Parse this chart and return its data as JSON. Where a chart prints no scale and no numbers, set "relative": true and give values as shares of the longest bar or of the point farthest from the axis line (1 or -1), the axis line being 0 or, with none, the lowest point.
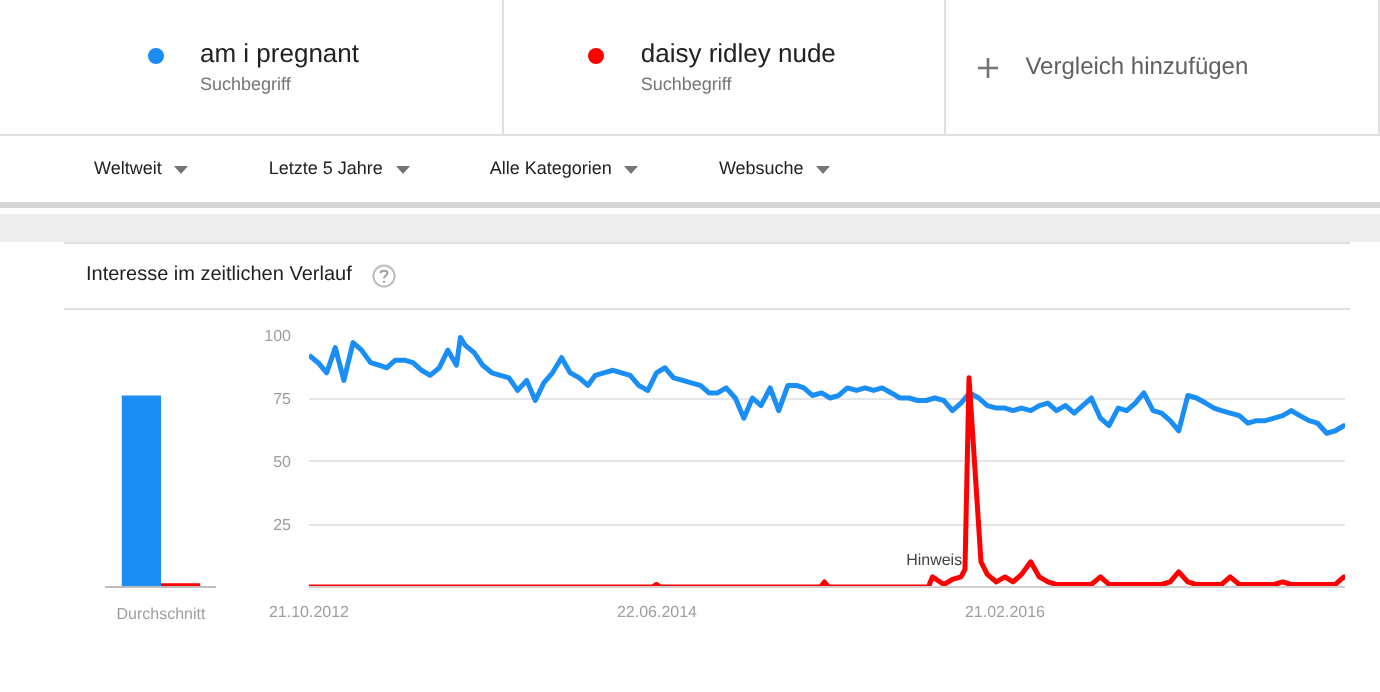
{
  "chart_data": [
    {
      "type": "line",
      "title": "Interesse im zeitlichen Verlauf",
      "legend": "top",
      "grid": "y",
      "marker": "none",
      "line_style": "solid",
      "xlim": [
        "2012-10-21",
        "2017-10-08"
      ],
      "xticks": [
        {
          "value": "2012-10-21",
          "label": "21.10.2012"
        },
        {
          "value": "2014-06-22",
          "label": "22.06.2014"
        },
        {
          "value": "2016-02-21",
          "label": "21.02.2016"
        }
      ],
      "ylim": [
        0,
        100
      ],
      "yticks": [
        25,
        50,
        75,
        100
      ],
      "annotations": [
        "Suchbegriff",
        "Suchbegriff",
        "Vergleich hinzufügen",
        "Weltweit",
        "Letzte 5 Jahre",
        "Alle Kategorien",
        "Websuche",
        {
          "text": "Hinweis",
          "x": "2015-10-20",
          "y": 7
        }
      ],
      "series": [
        {
          "name": "am i pregnant",
          "color": "#1a8ef5",
          "x": [
            "2012-10-21",
            "2012-11-06",
            "2012-11-21",
            "2012-12-06",
            "2012-12-21",
            "2013-01-06",
            "2013-01-21",
            "2013-02-06",
            "2013-02-21",
            "2013-03-06",
            "2013-03-21",
            "2013-04-06",
            "2013-04-21",
            "2013-05-06",
            "2013-05-21",
            "2013-06-06",
            "2013-06-21",
            "2013-07-06",
            "2013-07-13",
            "2013-07-21",
            "2013-08-06",
            "2013-08-21",
            "2013-09-06",
            "2013-09-21",
            "2013-10-06",
            "2013-10-21",
            "2013-11-06",
            "2013-11-21",
            "2013-12-06",
            "2013-12-21",
            "2014-01-06",
            "2014-01-21",
            "2014-02-06",
            "2014-02-21",
            "2014-03-06",
            "2014-03-21",
            "2014-04-06",
            "2014-04-21",
            "2014-05-06",
            "2014-05-21",
            "2014-06-06",
            "2014-06-21",
            "2014-07-06",
            "2014-07-21",
            "2014-08-06",
            "2014-08-21",
            "2014-09-06",
            "2014-09-21",
            "2014-10-06",
            "2014-10-21",
            "2014-11-06",
            "2014-11-21",
            "2014-12-06",
            "2014-12-21",
            "2015-01-06",
            "2015-01-21",
            "2015-02-06",
            "2015-02-21",
            "2015-03-06",
            "2015-03-21",
            "2015-04-06",
            "2015-04-21",
            "2015-05-06",
            "2015-05-21",
            "2015-06-06",
            "2015-06-21",
            "2015-07-06",
            "2015-07-21",
            "2015-08-06",
            "2015-08-21",
            "2015-09-06",
            "2015-09-21",
            "2015-10-06",
            "2015-10-21",
            "2015-11-06",
            "2015-11-21",
            "2015-12-06",
            "2015-12-21",
            "2016-01-06",
            "2016-01-21",
            "2016-02-06",
            "2016-02-21",
            "2016-03-06",
            "2016-03-21",
            "2016-04-06",
            "2016-04-21",
            "2016-05-06",
            "2016-05-21",
            "2016-06-06",
            "2016-06-21",
            "2016-07-06",
            "2016-07-21",
            "2016-08-06",
            "2016-08-21",
            "2016-09-06",
            "2016-09-21",
            "2016-10-06",
            "2016-10-21",
            "2016-11-06",
            "2016-11-21",
            "2016-12-06",
            "2016-12-21",
            "2017-01-06",
            "2017-01-21",
            "2017-02-06",
            "2017-02-21",
            "2017-03-06",
            "2017-03-21",
            "2017-04-06",
            "2017-04-21",
            "2017-05-06",
            "2017-05-21",
            "2017-06-06",
            "2017-06-21",
            "2017-07-06",
            "2017-07-21",
            "2017-08-06",
            "2017-08-21",
            "2017-09-06",
            "2017-09-21",
            "2017-10-06",
            "2017-10-08"
          ],
          "values": [
            92,
            89,
            85,
            95,
            82,
            97,
            94,
            89,
            88,
            87,
            90,
            90,
            89,
            86,
            84,
            87,
            94,
            88,
            99,
            96,
            93,
            88,
            85,
            84,
            83,
            78,
            82,
            74,
            81,
            85,
            91,
            85,
            83,
            80,
            84,
            85,
            86,
            85,
            84,
            80,
            78,
            85,
            87,
            83,
            82,
            81,
            80,
            77,
            77,
            79,
            75,
            67,
            75,
            72,
            79,
            70,
            80,
            80,
            79,
            76,
            77,
            75,
            76,
            79,
            78,
            79,
            78,
            79,
            77,
            75,
            75,
            74,
            74,
            75,
            74,
            70,
            73,
            77,
            75,
            72,
            71,
            71,
            70,
            71,
            70,
            72,
            73,
            70,
            72,
            69,
            72,
            75,
            67,
            64,
            71,
            70,
            73,
            77,
            70,
            69,
            66,
            62,
            76,
            75,
            73,
            71,
            70,
            69,
            68,
            65,
            66,
            66,
            67,
            68,
            70,
            68,
            66,
            65,
            61,
            62,
            64,
            64
          ]
        },
        {
          "name": "daisy ridley nude",
          "color": "#ff0000",
          "x": [
            "2012-10-21",
            "2014-06-14",
            "2014-06-21",
            "2014-06-28",
            "2015-04-04",
            "2015-04-11",
            "2015-04-18",
            "2015-10-10",
            "2015-10-17",
            "2015-11-06",
            "2015-11-21",
            "2015-12-06",
            "2015-12-13",
            "2015-12-20",
            "2016-01-10",
            "2016-01-21",
            "2016-02-06",
            "2016-02-21",
            "2016-03-06",
            "2016-03-21",
            "2016-04-06",
            "2016-04-21",
            "2016-05-06",
            "2016-05-21",
            "2016-07-21",
            "2016-08-06",
            "2016-08-21",
            "2016-11-21",
            "2016-12-06",
            "2016-12-21",
            "2017-01-06",
            "2017-01-21",
            "2017-03-06",
            "2017-03-21",
            "2017-04-06",
            "2017-06-06",
            "2017-06-21",
            "2017-07-06",
            "2017-09-21",
            "2017-10-06",
            "2017-10-08"
          ],
          "values": [
            0,
            0,
            1,
            0,
            0,
            2,
            0,
            0,
            4,
            1,
            3,
            4,
            7,
            83,
            10,
            5,
            2,
            4,
            2,
            5,
            10,
            4,
            2,
            1,
            1,
            4,
            1,
            1,
            2,
            6,
            2,
            1,
            1,
            4,
            1,
            1,
            2,
            1,
            1,
            4,
            4
          ]
        }
      ]
    },
    {
      "type": "bar",
      "relative": true,
      "categories": [
        "Durchschnitt"
      ],
      "grid": false,
      "series": [
        {
          "color": "#1a8ef5",
          "values": [
            1
          ]
        },
        {
          "color": "#ff0000",
          "values": [
            0.02
          ]
        }
      ]
    }
  ]
}
